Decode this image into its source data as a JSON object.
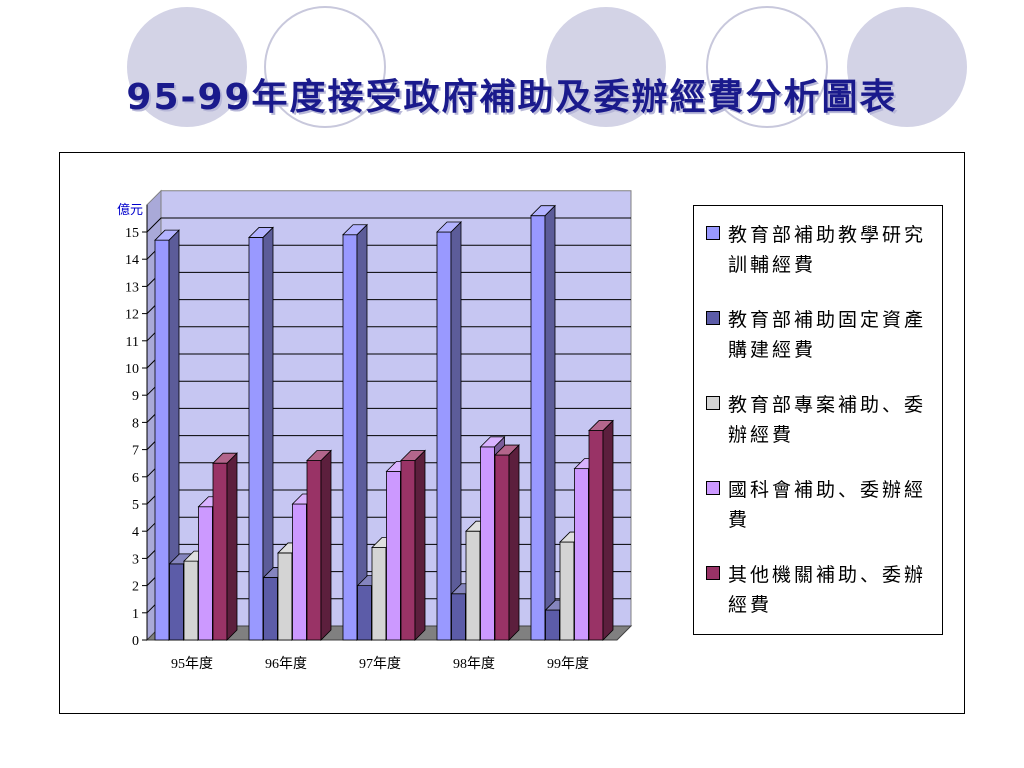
{
  "title": "95-99年度接受政府補助及委辦經費分析圖表",
  "chart_data": {
    "type": "bar",
    "title": "95-99年度接受政府補助及委辦經費分析圖表",
    "ylabel": "億元",
    "xlabel": "",
    "ylim": [
      0,
      16
    ],
    "yticks": [
      0,
      1,
      2,
      3,
      4,
      5,
      6,
      7,
      8,
      9,
      10,
      11,
      12,
      13,
      14,
      15
    ],
    "grid": true,
    "legend_position": "right",
    "categories": [
      "95年度",
      "96年度",
      "97年度",
      "98年度",
      "99年度"
    ],
    "series": [
      {
        "name": "教育部補助教學研究訓輔經費",
        "color": "#9999ff",
        "values": [
          14.7,
          14.8,
          14.9,
          15.0,
          15.6
        ]
      },
      {
        "name": "教育部補助固定資產購建經費",
        "color": "#5c5ca8",
        "values": [
          2.8,
          2.3,
          2.0,
          1.7,
          1.1
        ]
      },
      {
        "name": "教育部專案補助、委辦經費",
        "color": "#d4d4d4",
        "values": [
          2.9,
          3.2,
          3.4,
          4.0,
          3.6
        ]
      },
      {
        "name": "國科會補助、委辦經費",
        "color": "#cc99ff",
        "values": [
          4.9,
          5.0,
          6.2,
          7.1,
          6.3
        ]
      },
      {
        "name": "其他機關補助、委辦經費",
        "color": "#993366",
        "values": [
          6.5,
          6.6,
          6.6,
          6.8,
          7.7
        ]
      }
    ]
  }
}
